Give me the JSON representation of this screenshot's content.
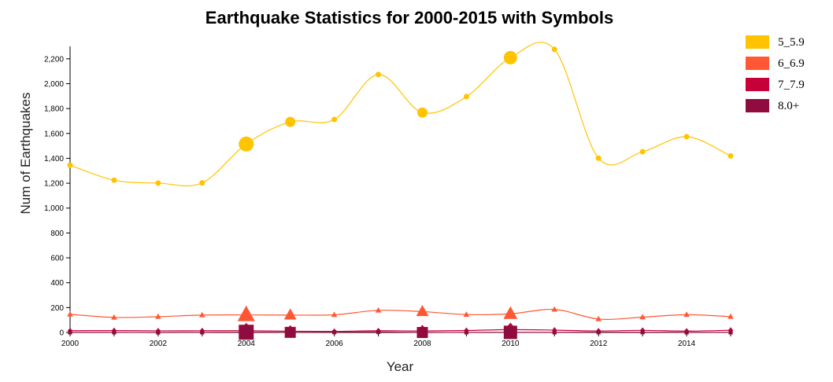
{
  "chart_data": {
    "type": "line",
    "title": "Earthquake Statistics for 2000-2015 with Symbols",
    "xlabel": "Year",
    "ylabel": "Num of Earthquakes",
    "x": [
      2000,
      2001,
      2002,
      2003,
      2004,
      2005,
      2006,
      2007,
      2008,
      2009,
      2010,
      2011,
      2012,
      2013,
      2014,
      2015
    ],
    "xlim": [
      2000,
      2015
    ],
    "ylim": [
      0,
      2300
    ],
    "x_ticks": [
      "2000",
      "2002",
      "2004",
      "2006",
      "2008",
      "2010",
      "2012",
      "2014"
    ],
    "y_ticks": [
      "0",
      "200",
      "400",
      "600",
      "800",
      "1,000",
      "1,200",
      "1,400",
      "1,600",
      "1,800",
      "2,000",
      "2,200"
    ],
    "legend_position": "top-right",
    "series": [
      {
        "name": "5_5.9",
        "color": "#FFC300",
        "symbol": "circle",
        "values": [
          1345,
          1224,
          1201,
          1203,
          1515,
          1693,
          1712,
          2074,
          1768,
          1896,
          2209,
          2276,
          1401,
          1453,
          1574,
          1419
        ]
      },
      {
        "name": "6_6.9",
        "color": "#FF5733",
        "symbol": "triangle",
        "values": [
          146,
          121,
          127,
          140,
          141,
          140,
          142,
          178,
          168,
          144,
          150,
          185,
          108,
          123,
          143,
          127
        ]
      },
      {
        "name": "7_7.9",
        "color": "#C70039",
        "symbol": "diamond",
        "values": [
          14,
          15,
          13,
          14,
          14,
          10,
          9,
          14,
          12,
          16,
          23,
          19,
          12,
          17,
          11,
          18
        ]
      },
      {
        "name": "8.0+",
        "color": "#900C3F",
        "symbol": "square",
        "values": [
          1,
          1,
          0,
          1,
          2,
          1,
          2,
          4,
          0,
          1,
          1,
          1,
          2,
          2,
          1,
          1
        ]
      }
    ],
    "highlighted_years": [
      2004,
      2005,
      2008,
      2010
    ]
  }
}
